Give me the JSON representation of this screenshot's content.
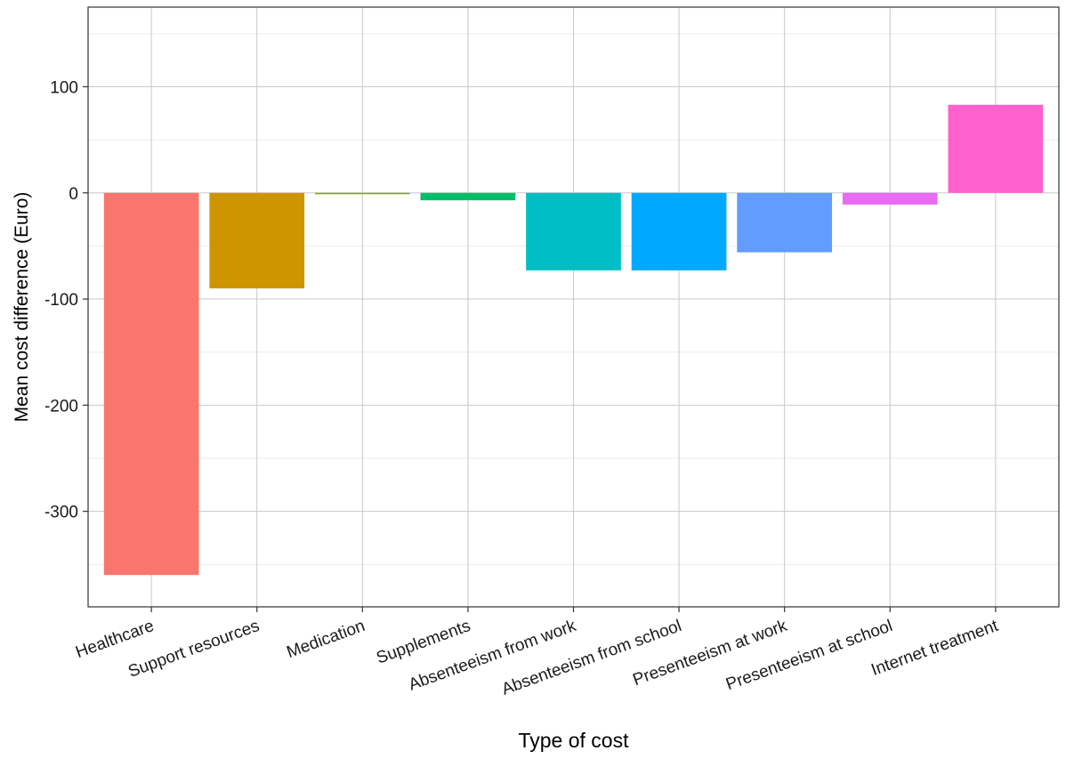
{
  "chart_data": {
    "type": "bar",
    "xlabel": "Type of cost",
    "ylabel": "Mean cost difference (Euro)",
    "categories": [
      "Healthcare",
      "Support resources",
      "Medication",
      "Supplements",
      "Absenteeism from work",
      "Absenteeism from school",
      "Presenteeism at work",
      "Presenteeism at school",
      "Internet treatment"
    ],
    "values": [
      -360,
      -90,
      -1,
      -7,
      -73,
      -73,
      -56,
      -11,
      83
    ],
    "colors": [
      "#F8766D",
      "#CD9600",
      "#7CAE00",
      "#00BE67",
      "#00BFC4",
      "#00A9FF",
      "#619CFF",
      "#E76BF3",
      "#FF61CC"
    ],
    "ylim": [
      -390,
      175
    ],
    "yticks": [
      -300,
      -200,
      -100,
      0,
      100
    ],
    "ytick_labels": [
      "-300",
      "-200",
      "-100",
      "0",
      "100"
    ],
    "grid": true,
    "legend": "none"
  }
}
